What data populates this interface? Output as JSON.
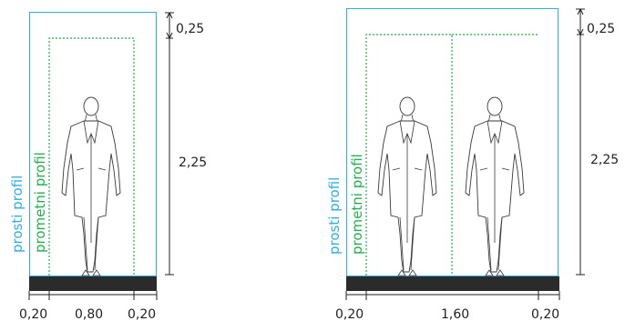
{
  "colors": {
    "clearance": "#2eaee6",
    "traffic": "#22b14c",
    "ground": "#2b2b2b"
  },
  "labels": {
    "clearance_profile": "prosti profil",
    "traffic_profile": "prometni profil"
  },
  "left_diagram": {
    "dim_top": "0,25",
    "dim_height": "2,25",
    "dim_left": "0,20",
    "dim_center": "0,80",
    "dim_right": "0,20"
  },
  "right_diagram": {
    "dim_top": "0,25",
    "dim_height": "2,25",
    "dim_left": "0,20",
    "dim_center": "1,60",
    "dim_right": "0,20"
  }
}
